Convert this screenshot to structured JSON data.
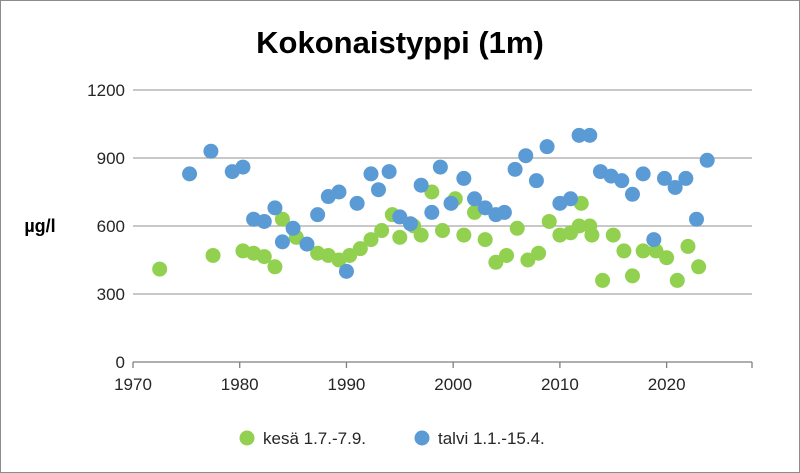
{
  "chart_data": {
    "type": "scatter",
    "title": "Kokonaistyppi (1m)",
    "xlabel": "",
    "ylabel": "µg/l",
    "xlim": [
      1970,
      2028
    ],
    "ylim": [
      0,
      1200
    ],
    "x_ticks": [
      1970,
      1980,
      1990,
      2000,
      2010,
      2020
    ],
    "y_ticks": [
      0,
      300,
      600,
      900,
      1200
    ],
    "grid": "horizontal",
    "legend_position": "bottom",
    "series": [
      {
        "name": "kesä 1.7.-7.9.",
        "color": "#92d050",
        "points": [
          [
            1972.5,
            410
          ],
          [
            1977.5,
            470
          ],
          [
            1980.3,
            490
          ],
          [
            1981.3,
            480
          ],
          [
            1982.3,
            465
          ],
          [
            1983.3,
            420
          ],
          [
            1984.0,
            630
          ],
          [
            1985.3,
            550
          ],
          [
            1987.3,
            480
          ],
          [
            1988.3,
            470
          ],
          [
            1989.3,
            450
          ],
          [
            1990.3,
            470
          ],
          [
            1991.3,
            500
          ],
          [
            1992.3,
            540
          ],
          [
            1993.3,
            580
          ],
          [
            1994.3,
            650
          ],
          [
            1995.0,
            550
          ],
          [
            1996.3,
            600
          ],
          [
            1997.0,
            560
          ],
          [
            1998.0,
            750
          ],
          [
            1999.0,
            580
          ],
          [
            2000.2,
            720
          ],
          [
            2001.0,
            560
          ],
          [
            2002.0,
            660
          ],
          [
            2003.0,
            540
          ],
          [
            2004.0,
            440
          ],
          [
            2005.0,
            470
          ],
          [
            2006.0,
            590
          ],
          [
            2007.0,
            450
          ],
          [
            2008.0,
            480
          ],
          [
            2009.0,
            620
          ],
          [
            2010.0,
            560
          ],
          [
            2011.0,
            570
          ],
          [
            2011.8,
            600
          ],
          [
            2012.0,
            700
          ],
          [
            2012.8,
            600
          ],
          [
            2013.0,
            560
          ],
          [
            2014.0,
            360
          ],
          [
            2015.0,
            560
          ],
          [
            2016.0,
            490
          ],
          [
            2016.8,
            380
          ],
          [
            2017.8,
            490
          ],
          [
            2019.0,
            490
          ],
          [
            2020.0,
            460
          ],
          [
            2021.0,
            360
          ],
          [
            2022.0,
            510
          ],
          [
            2023.0,
            420
          ]
        ]
      },
      {
        "name": "talvi 1.1.-15.4.",
        "color": "#5b9bd5",
        "points": [
          [
            1975.3,
            830
          ],
          [
            1977.3,
            930
          ],
          [
            1979.3,
            840
          ],
          [
            1980.3,
            860
          ],
          [
            1981.3,
            630
          ],
          [
            1982.3,
            620
          ],
          [
            1983.3,
            680
          ],
          [
            1984.0,
            530
          ],
          [
            1985.0,
            590
          ],
          [
            1986.3,
            520
          ],
          [
            1987.3,
            650
          ],
          [
            1988.3,
            730
          ],
          [
            1989.3,
            750
          ],
          [
            1990.0,
            400
          ],
          [
            1991.0,
            700
          ],
          [
            1992.3,
            830
          ],
          [
            1993.0,
            760
          ],
          [
            1994.0,
            840
          ],
          [
            1995.0,
            640
          ],
          [
            1996.0,
            610
          ],
          [
            1997.0,
            780
          ],
          [
            1998.0,
            660
          ],
          [
            1998.8,
            860
          ],
          [
            1999.8,
            700
          ],
          [
            2001.0,
            810
          ],
          [
            2002.0,
            720
          ],
          [
            2003.0,
            680
          ],
          [
            2004.0,
            650
          ],
          [
            2004.8,
            660
          ],
          [
            2005.8,
            850
          ],
          [
            2006.8,
            910
          ],
          [
            2007.8,
            800
          ],
          [
            2008.8,
            950
          ],
          [
            2010.0,
            700
          ],
          [
            2011.0,
            720
          ],
          [
            2011.8,
            1000
          ],
          [
            2012.8,
            1000
          ],
          [
            2013.8,
            840
          ],
          [
            2014.8,
            820
          ],
          [
            2015.8,
            800
          ],
          [
            2016.8,
            740
          ],
          [
            2017.8,
            830
          ],
          [
            2018.8,
            540
          ],
          [
            2019.8,
            810
          ],
          [
            2020.8,
            770
          ],
          [
            2021.8,
            810
          ],
          [
            2022.8,
            630
          ],
          [
            2023.8,
            890
          ]
        ]
      }
    ]
  }
}
